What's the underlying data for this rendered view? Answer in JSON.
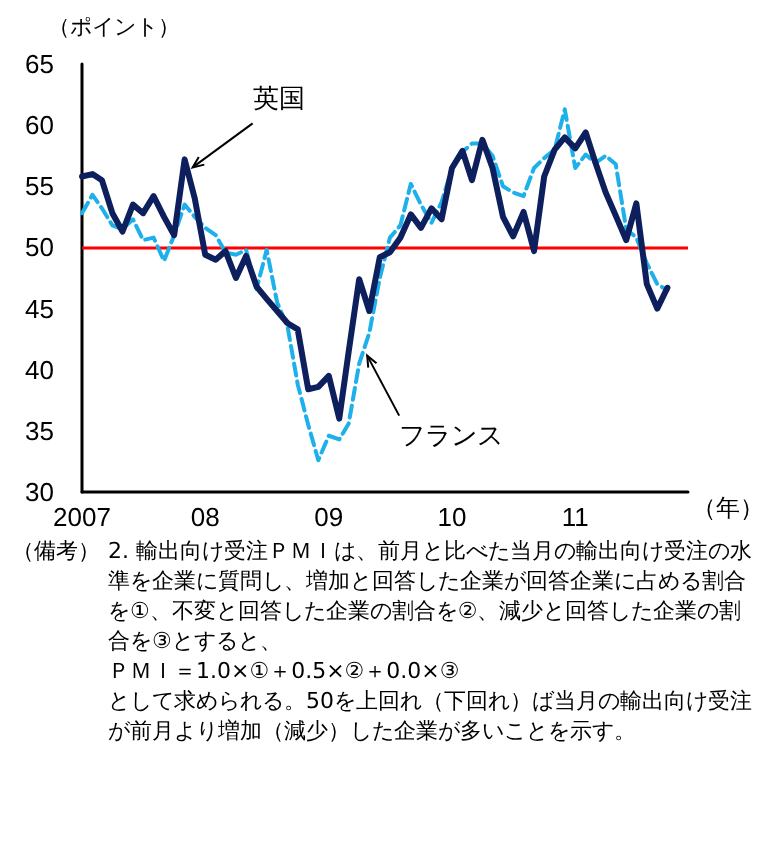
{
  "chart_data": {
    "type": "line",
    "ylabel": "（ポイント）",
    "xlabel": "（年）",
    "x": [
      "2007-01",
      "2007-02",
      "2007-03",
      "2007-04",
      "2007-05",
      "2007-06",
      "2007-07",
      "2007-08",
      "2007-09",
      "2007-10",
      "2007-11",
      "2007-12",
      "2008-01",
      "2008-02",
      "2008-03",
      "2008-04",
      "2008-05",
      "2008-06",
      "2008-07",
      "2008-08",
      "2008-09",
      "2008-10",
      "2008-11",
      "2008-12",
      "2009-01",
      "2009-02",
      "2009-03",
      "2009-04",
      "2009-05",
      "2009-06",
      "2009-07",
      "2009-08",
      "2009-09",
      "2009-10",
      "2009-11",
      "2009-12",
      "2010-01",
      "2010-02",
      "2010-03",
      "2010-04",
      "2010-05",
      "2010-06",
      "2010-07",
      "2010-08",
      "2010-09",
      "2010-10",
      "2010-11",
      "2010-12",
      "2011-01",
      "2011-02",
      "2011-03",
      "2011-04",
      "2011-05",
      "2011-06",
      "2011-07",
      "2011-08",
      "2011-09",
      "2011-10"
    ],
    "series": [
      {
        "name": "英国",
        "color": "#0d1f5c",
        "line_style": "solid",
        "values": [
          55.8,
          56.0,
          55.5,
          52.8,
          51.3,
          53.5,
          52.8,
          54.2,
          52.5,
          51.0,
          57.2,
          54.0,
          49.4,
          49.0,
          49.7,
          47.5,
          49.3,
          46.8,
          45.8,
          44.8,
          43.8,
          43.3,
          38.4,
          38.6,
          39.5,
          36.0,
          41.5,
          47.4,
          44.8,
          49.2,
          49.6,
          50.8,
          52.7,
          51.6,
          53.2,
          52.3,
          56.5,
          57.9,
          55.5,
          58.8,
          56.5,
          52.5,
          50.9,
          52.9,
          49.7,
          55.8,
          58.0,
          59.0,
          58.1,
          59.4,
          57.0,
          54.5,
          52.6,
          50.6,
          53.6,
          47.0,
          45.0,
          46.7
        ]
      },
      {
        "name": "フランス",
        "color": "#1eb0ea",
        "line_style": "dashed",
        "values": [
          52.8,
          54.3,
          53.2,
          51.8,
          51.5,
          52.3,
          50.6,
          50.8,
          48.9,
          51.0,
          53.5,
          52.5,
          51.6,
          51.0,
          49.6,
          49.4,
          49.8,
          46.6,
          49.8,
          45.5,
          43.5,
          38.8,
          35.5,
          32.6,
          34.6,
          34.3,
          35.6,
          40.5,
          43.0,
          47.5,
          50.8,
          51.8,
          55.2,
          53.5,
          52.0,
          53.7,
          56.5,
          57.8,
          58.5,
          58.5,
          57.5,
          55.0,
          54.5,
          54.2,
          56.5,
          57.3,
          58.0,
          61.3,
          56.5,
          57.6,
          56.9,
          57.5,
          56.8,
          51.5,
          50.8,
          48.7,
          47.0,
          46.5
        ]
      }
    ],
    "xlim": [
      "2007-01",
      "2011-12"
    ],
    "xticks": [
      {
        "value": "2007-01",
        "label": "2007"
      },
      {
        "value": "2008-01",
        "label": "08"
      },
      {
        "value": "2009-01",
        "label": "09"
      },
      {
        "value": "2010-01",
        "label": "10"
      },
      {
        "value": "2011-01",
        "label": "11"
      }
    ],
    "ylim": [
      30,
      65
    ],
    "yticks": [
      30,
      35,
      40,
      45,
      50,
      55,
      60,
      65
    ],
    "ref_lines": [
      {
        "axis": "y",
        "value": 50,
        "color": "#ff0000"
      }
    ],
    "grid": false,
    "legend": false,
    "marker": "none",
    "annotations": [
      "（備考）",
      "2. 輸出向け受注ＰＭＩは、前月と比べた当月の輸出向け受注の水準を企業に質問し、増加と回答した企業が回答企業に占める割合を①、不変と回答した企業の割合を②、減少と回答した企業の割合を③とすると、",
      "ＰＭＩ＝1.0×①＋0.5×②＋0.0×③",
      "として求められる。50を上回れ（下回れ）ば当月の輸出向け受注が前月より増加（減少）した企業が多いことを示す。"
    ]
  }
}
